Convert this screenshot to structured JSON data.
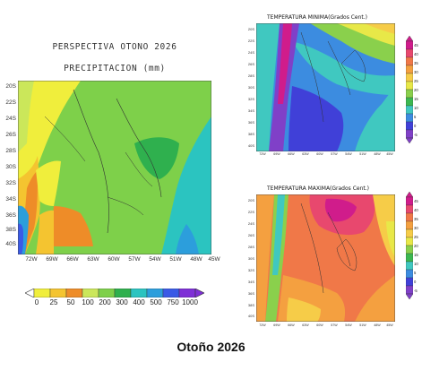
{
  "header": {
    "title": "PERSPECTIVA OTONO 2026",
    "subtitle": "PRECIPITACION (mm)"
  },
  "precip_map": {
    "lat_labels": [
      "20S",
      "22S",
      "24S",
      "26S",
      "28S",
      "30S",
      "32S",
      "34S",
      "36S",
      "38S",
      "40S"
    ],
    "lon_labels": [
      "72W",
      "69W",
      "66W",
      "63W",
      "60W",
      "57W",
      "54W",
      "51W",
      "48W",
      "45W"
    ],
    "colorbar": {
      "ticks": [
        "0",
        "25",
        "50",
        "100",
        "200",
        "300",
        "400",
        "500",
        "750",
        "1000"
      ],
      "colors": [
        "#f0ee3c",
        "#f4c430",
        "#ee8c28",
        "#cbe75a",
        "#7ed04a",
        "#2fb04e",
        "#2bc4c0",
        "#2c9edc",
        "#3a5ae6",
        "#7e2fd6"
      ]
    }
  },
  "tmin_map": {
    "title": "TEMPERATURA MINIMA(Grados Cent.)",
    "lat_labels": [
      "20S",
      "22S",
      "24S",
      "26S",
      "28S",
      "30S",
      "32S",
      "34S",
      "36S",
      "38S",
      "40S"
    ],
    "lon_labels": [
      "72W",
      "69W",
      "66W",
      "63W",
      "60W",
      "57W",
      "54W",
      "51W",
      "48W",
      "45W"
    ],
    "colorbar_ticks": [
      "45",
      "40",
      "35",
      "30",
      "25",
      "20",
      "15",
      "10",
      "5",
      "0",
      "-5"
    ]
  },
  "tmax_map": {
    "title": "TEMPERATURA MAXIMA(Grados Cent.)",
    "lat_labels": [
      "20S",
      "22S",
      "24S",
      "26S",
      "28S",
      "30S",
      "32S",
      "34S",
      "36S",
      "38S",
      "40S"
    ],
    "lon_labels": [
      "72W",
      "69W",
      "66W",
      "63W",
      "60W",
      "57W",
      "54W",
      "51W",
      "48W",
      "45W"
    ],
    "colorbar_ticks": [
      "45",
      "40",
      "35",
      "30",
      "25",
      "20",
      "15",
      "10",
      "5",
      "0",
      "-5"
    ]
  },
  "footer": {
    "caption": "Otoño 2026"
  },
  "temp_colorbar_colors": [
    "#d01c8b",
    "#e8486e",
    "#f07848",
    "#f4a040",
    "#f6cc48",
    "#e8e848",
    "#8ad04c",
    "#3cb850",
    "#40c8c0",
    "#3c8ce0",
    "#4040d8",
    "#8040c8"
  ]
}
